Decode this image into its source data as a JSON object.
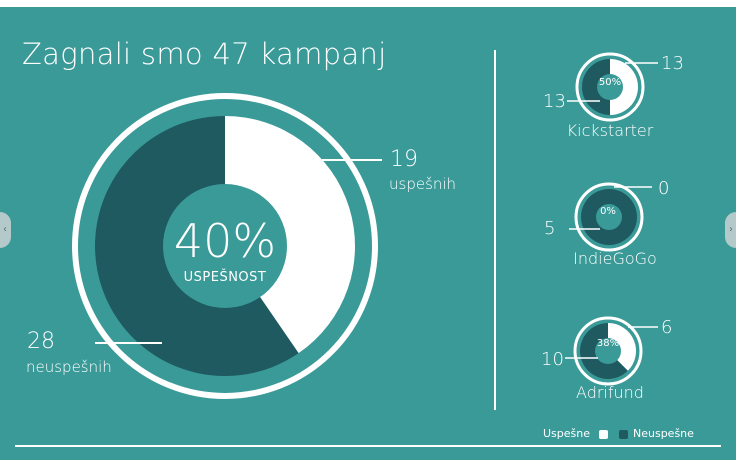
{
  "title": "Zagnali smo 47 kampanj",
  "total": {
    "percent_label": "40%",
    "percent_caption": "USPEŠNOST",
    "success_count": "19",
    "success_label": "uspešnih",
    "fail_count": "28",
    "fail_label": "neuspešnih"
  },
  "platforms": [
    {
      "name": "Kickstarter",
      "success": "13",
      "fail": "13",
      "percent_label": "50%"
    },
    {
      "name": "IndieGoGo",
      "success": "0",
      "fail": "5",
      "percent_label": "0%"
    },
    {
      "name": "Adrifund",
      "success": "6",
      "fail": "10",
      "percent_label": "38%"
    }
  ],
  "legend": {
    "success": "Uspešne",
    "fail": "Neuspešne"
  },
  "colors": {
    "background": "#3a9a98",
    "success": "#ffffff",
    "fail": "#1e5a60"
  },
  "nav": {
    "prev": "‹",
    "next": "›"
  },
  "chart_data": [
    {
      "type": "pie",
      "categories": [
        "Uspešne",
        "Neuspešne"
      ],
      "values": [
        19,
        28
      ],
      "title": "Zagnali smo 47 kampanj"
    },
    {
      "type": "pie",
      "title": "Kickstarter",
      "categories": [
        "Uspešne",
        "Neuspešne"
      ],
      "values": [
        13,
        13
      ]
    },
    {
      "type": "pie",
      "title": "IndieGoGo",
      "categories": [
        "Uspešne",
        "Neuspešne"
      ],
      "values": [
        0,
        5
      ]
    },
    {
      "type": "pie",
      "title": "Adrifund",
      "categories": [
        "Uspešne",
        "Neuspešne"
      ],
      "values": [
        6,
        10
      ]
    }
  ]
}
